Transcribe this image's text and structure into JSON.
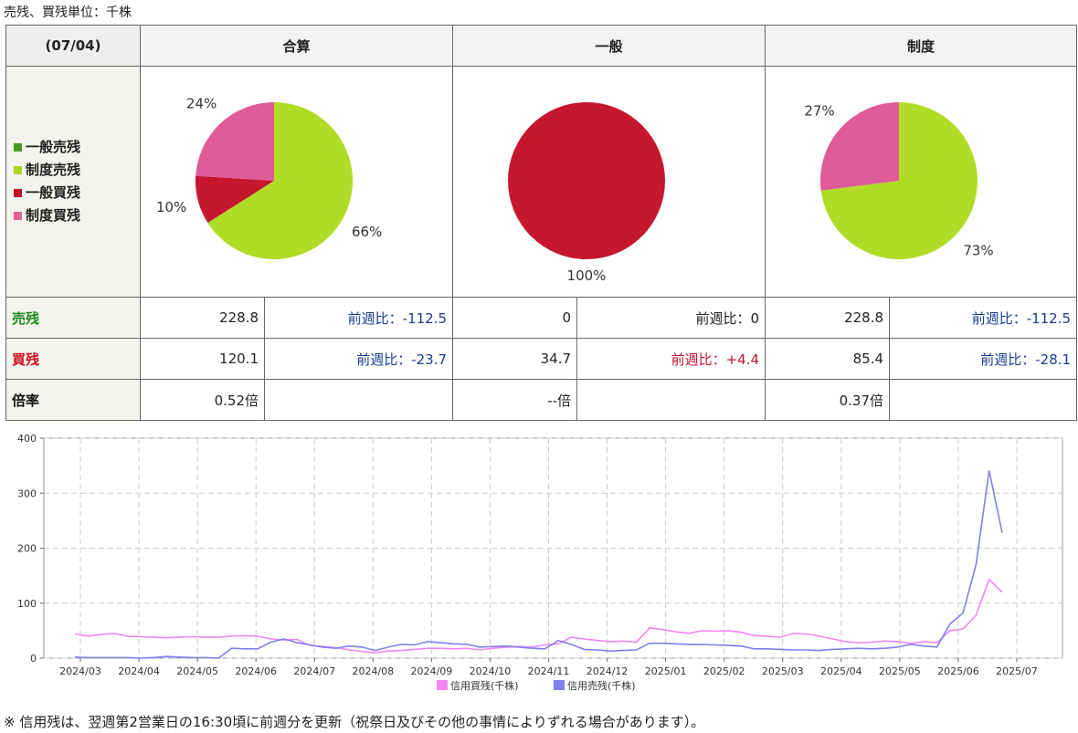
{
  "unit_note": "売残、買残単位：千株",
  "table": {
    "date": "(07/04)",
    "columns": [
      "合算",
      "一般",
      "制度"
    ],
    "legend": [
      {
        "label": "一般売残",
        "color": "#4a9a1e"
      },
      {
        "label": "制度売残",
        "color": "#a8d820"
      },
      {
        "label": "一般買残",
        "color": "#c0102a"
      },
      {
        "label": "制度買残",
        "color": "#e0609a"
      }
    ],
    "rows": {
      "sell": {
        "label": "売残",
        "cells": [
          {
            "value": "228.8",
            "cmp": "前週比：-112.5"
          },
          {
            "value": "0",
            "cmp": "前週比：0"
          },
          {
            "value": "228.8",
            "cmp": "前週比：-112.5"
          }
        ]
      },
      "buy": {
        "label": "買残",
        "cells": [
          {
            "value": "120.1",
            "cmp": "前週比：-23.7"
          },
          {
            "value": "34.7",
            "cmp": "前週比：+4.4"
          },
          {
            "value": "85.4",
            "cmp": "前週比：-28.1"
          }
        ]
      },
      "ratio": {
        "label": "倍率",
        "cells": [
          {
            "value": "0.52倍"
          },
          {
            "value": "--倍"
          },
          {
            "value": "0.37倍"
          }
        ]
      }
    }
  },
  "chart_data": [
    {
      "type": "pie",
      "title": "合算",
      "slices": [
        {
          "label": "制度売残",
          "value": 66,
          "text": "66%",
          "color": "#b0dc28"
        },
        {
          "label": "一般買残",
          "value": 10,
          "text": "10%",
          "color": "#c5172e"
        },
        {
          "label": "制度買残",
          "value": 24,
          "text": "24%",
          "color": "#df5b9a"
        }
      ]
    },
    {
      "type": "pie",
      "title": "一般",
      "slices": [
        {
          "label": "一般買残",
          "value": 100,
          "text": "100%",
          "color": "#c5172e"
        }
      ]
    },
    {
      "type": "pie",
      "title": "制度",
      "slices": [
        {
          "label": "制度売残",
          "value": 73,
          "text": "73%",
          "color": "#b0dc28"
        },
        {
          "label": "制度買残",
          "value": 27,
          "text": "27%",
          "color": "#df5b9a"
        }
      ]
    },
    {
      "type": "line",
      "ylim": [
        0,
        400
      ],
      "yticks": [
        0,
        100,
        200,
        300,
        400
      ],
      "grid": true,
      "legend_position": "bottom",
      "xticks": [
        "2024/03",
        "2024/04",
        "2024/05",
        "2024/06",
        "2024/07",
        "2024/08",
        "2024/09",
        "2024/10",
        "2024/11",
        "2024/12",
        "2025/01",
        "2025/02",
        "2025/03",
        "2025/04",
        "2025/05",
        "2025/06",
        "2025/07"
      ],
      "series": [
        {
          "name": "信用買残(千株)",
          "color": "#f088f0",
          "values": [
            44,
            40,
            43,
            45,
            40,
            39,
            38,
            37,
            38,
            39,
            38,
            38,
            40,
            41,
            40,
            35,
            33,
            34,
            23,
            21,
            19,
            15,
            12,
            10,
            13,
            14,
            16,
            18,
            18,
            17,
            18,
            15,
            18,
            20,
            21,
            20,
            24,
            26,
            38,
            35,
            32,
            30,
            31,
            29,
            55,
            52,
            48,
            45,
            50,
            49,
            50,
            47,
            41,
            40,
            38,
            45,
            44,
            40,
            35,
            30,
            28,
            29,
            31,
            30,
            27,
            30,
            28,
            50,
            53,
            78,
            143,
            120
          ]
        },
        {
          "name": "信用売残(千株)",
          "color": "#8080f0",
          "values": [
            2,
            1,
            1,
            1,
            1,
            0,
            1,
            3,
            2,
            1,
            1,
            0,
            18,
            17,
            17,
            29,
            35,
            28,
            24,
            20,
            18,
            22,
            20,
            14,
            20,
            25,
            24,
            30,
            28,
            26,
            25,
            20,
            21,
            22,
            20,
            18,
            17,
            32,
            25,
            16,
            15,
            13,
            14,
            15,
            27,
            27,
            26,
            25,
            25,
            24,
            23,
            22,
            17,
            17,
            16,
            15,
            15,
            14,
            16,
            17,
            18,
            17,
            18,
            20,
            25,
            22,
            20,
            62,
            82,
            170,
            341,
            228
          ]
        }
      ]
    }
  ],
  "footnote": "※ 信用残は、翌週第2営業日の16:30頃に前週分を更新（祝祭日及びその他の事情によりずれる場合があります）。"
}
